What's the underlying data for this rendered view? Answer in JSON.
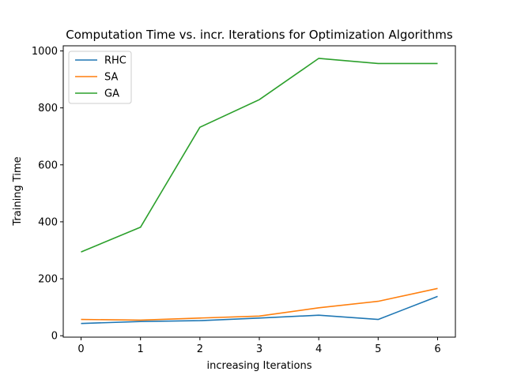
{
  "chart_data": {
    "type": "line",
    "title": "Computation Time vs. incr. Iterations for Optimization Algorithms",
    "xlabel": "increasing Iterations",
    "ylabel": "Training Time",
    "x": [
      0,
      1,
      2,
      3,
      4,
      5,
      6
    ],
    "xticks": [
      0,
      1,
      2,
      3,
      4,
      5,
      6
    ],
    "yticks": [
      0,
      200,
      400,
      600,
      800,
      1000
    ],
    "xlim": [
      -0.3,
      6.3
    ],
    "ylim": [
      -5,
      1018
    ],
    "grid": false,
    "legend_position": "top-left",
    "series": [
      {
        "name": "RHC",
        "color": "#1f77b4",
        "values": [
          43,
          50,
          53,
          62,
          72,
          57,
          138
        ]
      },
      {
        "name": "SA",
        "color": "#ff7f0e",
        "values": [
          57,
          55,
          62,
          69,
          98,
          121,
          166
        ]
      },
      {
        "name": "GA",
        "color": "#2ca02c",
        "values": [
          294,
          381,
          732,
          829,
          974,
          956,
          956
        ]
      }
    ]
  }
}
